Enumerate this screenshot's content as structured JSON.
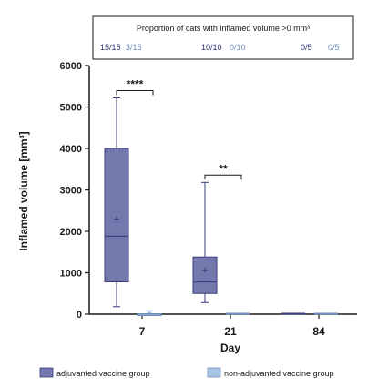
{
  "chart_data": {
    "type": "boxplot",
    "xlabel": "Day",
    "ylabel": "Inflamed volume [mm³]",
    "ylim": [
      0,
      6000
    ],
    "yticks": [
      "0",
      "1000",
      "2000",
      "3000",
      "4000",
      "5000",
      "6000"
    ],
    "categories": [
      "7",
      "21",
      "84"
    ],
    "proportion_box": {
      "title": "Proportion of cats with inflamed volume >0 mm³",
      "entries": [
        {
          "adjuvanted": "15/15",
          "non_adjuvanted": "3/15"
        },
        {
          "adjuvanted": "10/10",
          "non_adjuvanted": "0/10"
        },
        {
          "adjuvanted": "0/5",
          "non_adjuvanted": "0/5"
        }
      ]
    },
    "series": [
      {
        "name": "adjuvanted vaccine group",
        "color": "#7478ad",
        "stroke": "#3a3e7c",
        "boxes": [
          {
            "min": 180,
            "q1": 780,
            "median": 1880,
            "q3": 4000,
            "max": 5220,
            "mean": 2300
          },
          {
            "min": 280,
            "q1": 500,
            "median": 780,
            "q3": 1380,
            "max": 3180,
            "mean": 1060
          },
          {
            "min": 0,
            "q1": 0,
            "median": 0,
            "q3": 0,
            "max": 0,
            "mean": 0
          }
        ]
      },
      {
        "name": "non-adjuvanted vaccine group",
        "color": "#a9c3e3",
        "stroke": "#6f8fc0",
        "boxes": [
          {
            "min": 0,
            "q1": 0,
            "median": 0,
            "q3": 0,
            "max": 80,
            "mean": 20
          },
          {
            "min": 0,
            "q1": 0,
            "median": 0,
            "q3": 0,
            "max": 0,
            "mean": 0
          },
          {
            "min": 0,
            "q1": 0,
            "median": 0,
            "q3": 0,
            "max": 0,
            "mean": 0
          }
        ]
      }
    ],
    "significance": [
      {
        "category_index": 0,
        "label": "****"
      },
      {
        "category_index": 1,
        "label": "**"
      }
    ]
  }
}
